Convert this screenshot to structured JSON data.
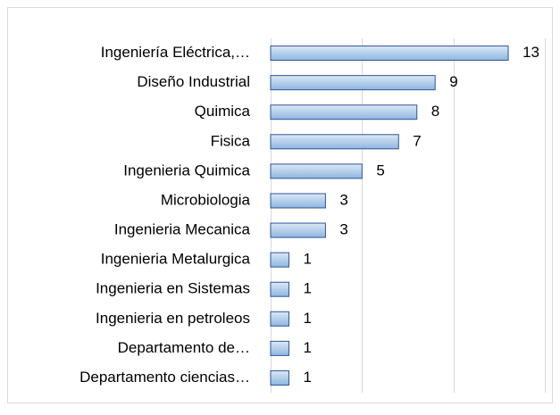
{
  "chart_data": {
    "type": "bar",
    "orientation": "horizontal",
    "categories": [
      "Ingeniería Eléctrica,…",
      "Diseño Industrial",
      "Quimica",
      "Fisica",
      "Ingenieria Quimica",
      "Microbiologia",
      "Ingenieria Mecanica",
      "Ingenieria Metalurgica",
      "Ingenieria en Sistemas",
      "Ingenieria en petroleos",
      "Departamento de…",
      "Departamento ciencias…"
    ],
    "values": [
      13,
      9,
      8,
      7,
      5,
      3,
      3,
      1,
      1,
      1,
      1,
      1
    ],
    "color": "#9dc3e6",
    "edge_color": "#2f5597",
    "xlim": [
      0,
      15
    ],
    "xticks": [
      0,
      5,
      10,
      15
    ],
    "grid": true
  }
}
